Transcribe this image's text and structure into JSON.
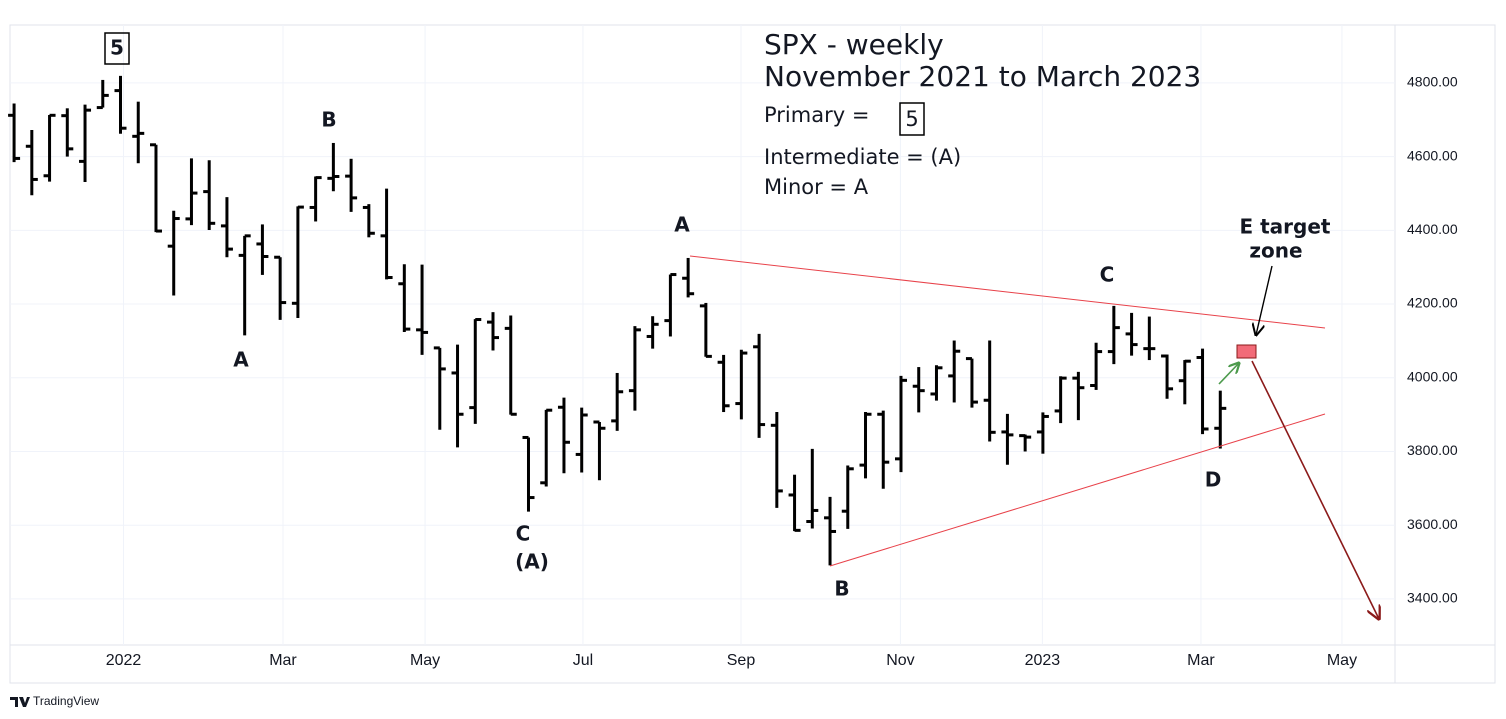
{
  "chart_data": {
    "type": "ohlc",
    "title": "SPX - weekly",
    "subtitle": "November 2021 to March 2023",
    "notes": [
      "Primary  =",
      "5",
      "Intermediate = (A)",
      "Minor = A"
    ],
    "wave_labels": [
      "5",
      "B",
      "A",
      "C",
      "(A)",
      "A",
      "B",
      "C",
      "D",
      "E target",
      "zone"
    ],
    "footer": "TradingView",
    "color": "#000000",
    "open": [
      4712,
      4628,
      4548,
      4711,
      4587,
      4733,
      4779,
      4655,
      4632,
      4357,
      4431,
      4505,
      4412,
      4332,
      4363,
      4327,
      4202,
      4462,
      4541,
      4547,
      4462,
      4385,
      4255,
      4130,
      4081,
      4013,
      3919,
      4151,
      4134,
      3838,
      3715,
      3920,
      3792,
      3880,
      3883,
      3965,
      4112,
      4155,
      4270,
      4195,
      4042,
      3930,
      4084,
      3871,
      3682,
      3610,
      3620,
      3638,
      3763,
      3901,
      3780,
      3977,
      3956,
      4005,
      4052,
      3939,
      3853,
      3843,
      3853,
      3910,
      3999,
      3979,
      4071,
      4119,
      4079,
      4059,
      3992,
      4055,
      3863
    ],
    "high": [
      4744,
      4672,
      4713,
      4731,
      4741,
      4808,
      4819,
      4749,
      4632,
      4453,
      4595,
      4590,
      4490,
      4385,
      4416,
      4327,
      4465,
      4546,
      4637,
      4594,
      4471,
      4513,
      4308,
      4307,
      4081,
      4090,
      4159,
      4178,
      4169,
      3838,
      3913,
      3946,
      3919,
      3880,
      4013,
      4140,
      4167,
      4280,
      4325,
      4203,
      4062,
      4076,
      4119,
      3907,
      3737,
      3807,
      3677,
      3762,
      3907,
      3911,
      4005,
      4029,
      4034,
      4101,
      4052,
      4101,
      3902,
      3846,
      3906,
      4004,
      4016,
      4095,
      4195,
      4176,
      4166,
      4063,
      4048,
      4079,
      3965
    ],
    "low": [
      4585,
      4495,
      4532,
      4600,
      4531,
      4733,
      4662,
      4582,
      4395,
      4223,
      4414,
      4401,
      4327,
      4115,
      4279,
      4157,
      4162,
      4424,
      4506,
      4450,
      4381,
      4267,
      4124,
      4062,
      3859,
      3811,
      3875,
      4074,
      3900,
      3637,
      3705,
      3741,
      3743,
      3722,
      3856,
      3911,
      4079,
      4112,
      4218,
      4057,
      3907,
      3887,
      3837,
      3647,
      3584,
      3591,
      3491,
      3590,
      3727,
      3699,
      3744,
      3906,
      3938,
      3933,
      3919,
      3827,
      3764,
      3800,
      3794,
      3877,
      3885,
      3967,
      4037,
      4060,
      4048,
      3943,
      3928,
      3847,
      3808
    ],
    "close": [
      4595,
      4538,
      4712,
      4621,
      4726,
      4766,
      4677,
      4663,
      4398,
      4432,
      4501,
      4419,
      4349,
      4385,
      4329,
      4204,
      4463,
      4543,
      4546,
      4488,
      4392,
      4272,
      4132,
      4123,
      4024,
      3901,
      4158,
      4109,
      3901,
      3675,
      3912,
      3825,
      3899,
      3863,
      3962,
      4130,
      4145,
      4280,
      4228,
      4058,
      3924,
      4067,
      3873,
      3693,
      3586,
      3640,
      3583,
      3753,
      3901,
      3771,
      3993,
      3965,
      4027,
      4072,
      3934,
      3852,
      3845,
      3839,
      3895,
      3999,
      3973,
      4071,
      4136,
      4090,
      4079,
      3970,
      4045,
      3861,
      3917
    ],
    "xlim": [
      -0.23,
      77.85
    ],
    "xticks": [
      {
        "value": 6.17,
        "label": "2022"
      },
      {
        "value": 15.16,
        "label": "Mar"
      },
      {
        "value": 23.17,
        "label": "May"
      },
      {
        "value": 32.07,
        "label": "Jul"
      },
      {
        "value": 40.98,
        "label": "Sep"
      },
      {
        "value": 49.97,
        "label": "Nov"
      },
      {
        "value": 57.97,
        "label": "2023"
      },
      {
        "value": 66.91,
        "label": "Mar"
      },
      {
        "value": 74.86,
        "label": "May"
      }
    ],
    "ylim": [
      3275,
      4957
    ],
    "yticks": [
      {
        "value": 3400,
        "label": "3400.00"
      },
      {
        "value": 3600,
        "label": "3600.00"
      },
      {
        "value": 3800,
        "label": "3800.00"
      },
      {
        "value": 4000,
        "label": "4000.00"
      },
      {
        "value": 4200,
        "label": "4200.00"
      },
      {
        "value": 4400,
        "label": "4400.00"
      },
      {
        "value": 4600,
        "label": "4600.00"
      },
      {
        "value": 4800,
        "label": "4800.00"
      }
    ],
    "grid": true,
    "y_axis_side": "right"
  }
}
